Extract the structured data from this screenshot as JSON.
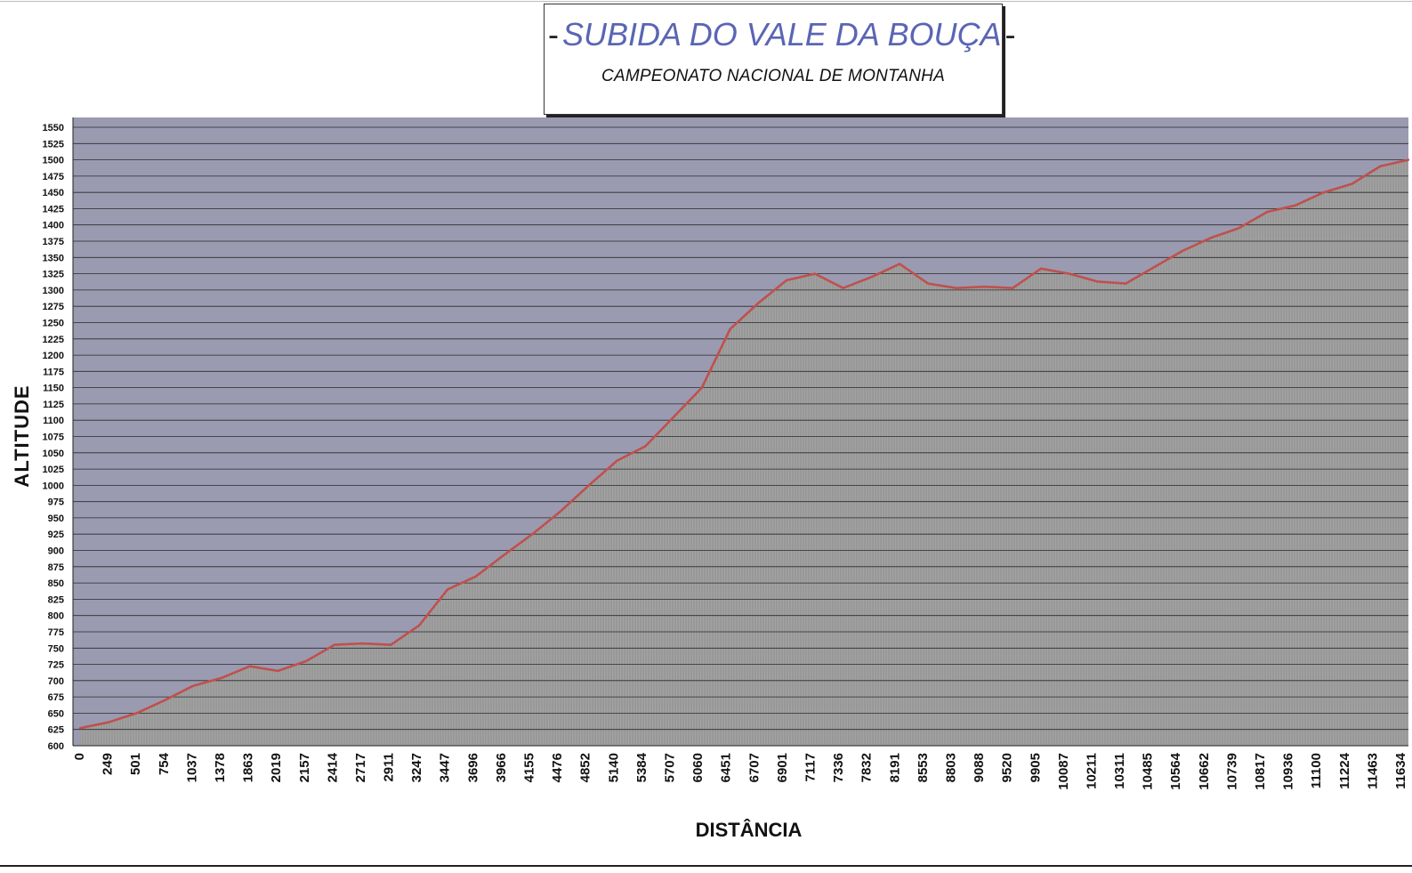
{
  "chart_data": {
    "type": "area",
    "title": "SUBIDA DO VALE DA BOUÇA",
    "title_dash": "-",
    "subtitle": "CAMPEONATO NACIONAL DE MONTANHA",
    "xlabel": "DISTÂNCIA",
    "ylabel": "ALTITUDE",
    "ylim": [
      600,
      1550
    ],
    "ytick_step": 25,
    "grid": true,
    "categories": [
      "0",
      "249",
      "501",
      "754",
      "1037",
      "1378",
      "1863",
      "2019",
      "2157",
      "2414",
      "2717",
      "2911",
      "3247",
      "3447",
      "3696",
      "3966",
      "4155",
      "4476",
      "4852",
      "5140",
      "5384",
      "5707",
      "6060",
      "6451",
      "6707",
      "6901",
      "7117",
      "7336",
      "7832",
      "8191",
      "8553",
      "8803",
      "9088",
      "9520",
      "9905",
      "10087",
      "10211",
      "10311",
      "10485",
      "10564",
      "10662",
      "10739",
      "10817",
      "10936",
      "11100",
      "11224",
      "11463",
      "11634"
    ],
    "values": [
      627,
      636,
      650,
      670,
      692,
      704,
      722,
      715,
      730,
      755,
      757,
      755,
      785,
      840,
      860,
      893,
      925,
      960,
      1000,
      1038,
      1060,
      1105,
      1150,
      1240,
      1280,
      1315,
      1325,
      1303,
      1320,
      1340,
      1310,
      1303,
      1305,
      1303,
      1333,
      1325,
      1313,
      1310,
      1335,
      1360,
      1380,
      1395,
      1420,
      1430,
      1450,
      1463,
      1490,
      1500
    ],
    "colors": {
      "plot_bg": "#9a9bb1",
      "fill": "#a3a3a3",
      "line": "#c0504d",
      "grid": "#2a2a2a",
      "title": "#5a65b4"
    }
  }
}
